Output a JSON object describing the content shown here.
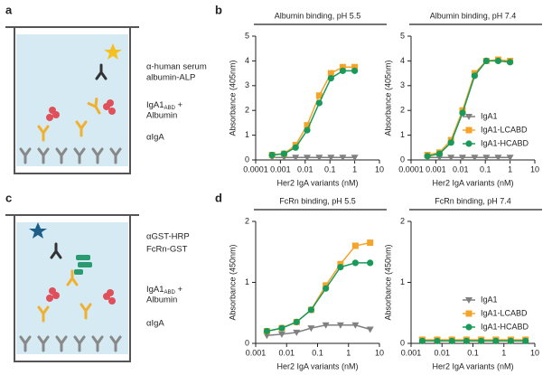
{
  "panel_labels": [
    "a",
    "b",
    "c",
    "d"
  ],
  "diagram_a": {
    "detection": [
      "α-human serum",
      "albumin-ALP"
    ],
    "analyte": {
      "main": "IgA1",
      "sub": "ABD",
      "rest": " +"
    },
    "analyte_2": "Albumin",
    "capture": "αIgA"
  },
  "diagram_c": {
    "detection": "αGST-HRP",
    "receptor": "FcRn-GST",
    "analyte": {
      "main": "IgA1",
      "sub": "ABD",
      "rest": " +"
    },
    "analyte_2": "Albumin",
    "capture": "αIgA"
  },
  "chart_data": [
    {
      "type": "line",
      "title": "Albumin binding, pH 5.5",
      "xlabel": "Her2 IgA variants (nM)",
      "ylabel": "Absorbance (405nm)",
      "log_x": true,
      "xlim": [
        0.0001,
        10
      ],
      "xticks": [
        0.0001,
        0.001,
        0.01,
        0.1,
        1,
        10
      ],
      "ylim": [
        0,
        5
      ],
      "yticks": [
        0,
        1,
        2,
        3,
        4,
        5
      ],
      "x": [
        0.00046,
        0.0014,
        0.0041,
        0.012,
        0.037,
        0.11,
        0.33,
        1
      ],
      "series": [
        {
          "color": "#808080",
          "marker": "triangle-down",
          "values": [
            0.1,
            0.1,
            0.1,
            0.1,
            0.1,
            0.1,
            0.1,
            0.1
          ]
        },
        {
          "color": "#f5a42a",
          "marker": "square",
          "values": [
            0.2,
            0.25,
            0.6,
            1.4,
            2.6,
            3.5,
            3.75,
            3.75
          ]
        },
        {
          "color": "#1a9a5a",
          "marker": "circle",
          "values": [
            0.2,
            0.25,
            0.5,
            1.2,
            2.3,
            3.3,
            3.6,
            3.6
          ]
        }
      ]
    },
    {
      "type": "line",
      "title": "Albumin binding, pH 7.4",
      "xlabel": "Her2 IgA variants (nM)",
      "ylabel": "Absorbance (405nm)",
      "log_x": true,
      "xlim": [
        0.0001,
        10
      ],
      "xticks": [
        0.0001,
        0.001,
        0.01,
        0.1,
        1,
        10
      ],
      "ylim": [
        0,
        5
      ],
      "yticks": [
        0,
        1,
        2,
        3,
        4,
        5
      ],
      "x": [
        0.00046,
        0.0014,
        0.0041,
        0.012,
        0.037,
        0.11,
        0.33,
        1
      ],
      "legend": "lower right",
      "series": [
        {
          "name": "IgA1",
          "color": "#808080",
          "marker": "triangle-down",
          "values": [
            0.1,
            0.1,
            0.1,
            0.1,
            0.1,
            0.1,
            0.1,
            0.1
          ]
        },
        {
          "name": "IgA1-LCABD",
          "color": "#f5a42a",
          "marker": "square",
          "values": [
            0.2,
            0.3,
            0.8,
            2.0,
            3.5,
            4.0,
            4.05,
            4.0
          ]
        },
        {
          "name": "IgA1-HCABD",
          "color": "#1a9a5a",
          "marker": "circle",
          "values": [
            0.15,
            0.25,
            0.7,
            1.9,
            3.4,
            4.0,
            4.0,
            3.95
          ]
        }
      ]
    },
    {
      "type": "line",
      "title": "FcRn binding, pH 5.5",
      "xlabel": "Her2 IgA variants (nM)",
      "ylabel": "Absorbance (450nm)",
      "log_x": true,
      "xlim": [
        0.001,
        10
      ],
      "xticks": [
        0.001,
        0.01,
        0.1,
        1,
        10
      ],
      "ylim": [
        0,
        2
      ],
      "yticks": [
        0,
        1,
        2
      ],
      "x": [
        0.0023,
        0.007,
        0.021,
        0.062,
        0.185,
        0.55,
        1.67,
        5
      ],
      "series": [
        {
          "color": "#808080",
          "marker": "triangle-down",
          "values": [
            0.13,
            0.15,
            0.18,
            0.25,
            0.3,
            0.3,
            0.3,
            0.23
          ]
        },
        {
          "color": "#f5a42a",
          "marker": "square",
          "values": [
            0.2,
            0.25,
            0.35,
            0.55,
            0.95,
            1.3,
            1.6,
            1.65
          ]
        },
        {
          "color": "#1a9a5a",
          "marker": "circle",
          "values": [
            0.2,
            0.25,
            0.35,
            0.55,
            0.9,
            1.25,
            1.32,
            1.32
          ]
        }
      ]
    },
    {
      "type": "line",
      "title": "FcRn binding, pH 7.4",
      "xlabel": "Her2 IgA variants (nM)",
      "ylabel": "Absorbance (450nm)",
      "log_x": true,
      "xlim": [
        0.001,
        10
      ],
      "xticks": [
        0.001,
        0.01,
        0.1,
        1,
        10
      ],
      "ylim": [
        0,
        2
      ],
      "yticks": [
        0,
        1,
        2
      ],
      "x": [
        0.0023,
        0.007,
        0.021,
        0.062,
        0.185,
        0.55,
        1.67,
        5
      ],
      "legend": "lower right",
      "series": [
        {
          "name": "IgA1",
          "color": "#808080",
          "marker": "triangle-down",
          "values": [
            0.05,
            0.05,
            0.05,
            0.05,
            0.05,
            0.05,
            0.05,
            0.05
          ]
        },
        {
          "name": "IgA1-LCABD",
          "color": "#f5a42a",
          "marker": "square",
          "values": [
            0.06,
            0.06,
            0.06,
            0.06,
            0.06,
            0.06,
            0.06,
            0.06
          ]
        },
        {
          "name": "IgA1-HCABD",
          "color": "#1a9a5a",
          "marker": "circle",
          "values": [
            0.04,
            0.04,
            0.04,
            0.04,
            0.04,
            0.04,
            0.04,
            0.04
          ]
        }
      ]
    }
  ]
}
